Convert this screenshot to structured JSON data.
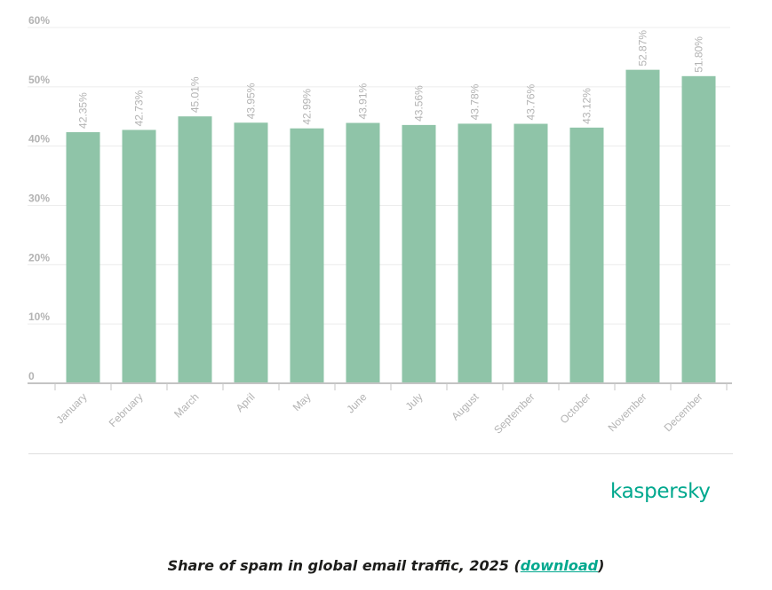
{
  "chart_data": {
    "type": "bar",
    "categories": [
      "January",
      "February",
      "March",
      "April",
      "May",
      "June",
      "July",
      "August",
      "September",
      "October",
      "November",
      "December"
    ],
    "values": [
      42.35,
      42.73,
      45.01,
      43.95,
      42.99,
      43.91,
      43.56,
      43.78,
      43.76,
      43.12,
      52.87,
      51.8
    ],
    "data_labels": [
      "42.35%",
      "42.73%",
      "45.01%",
      "43.95%",
      "42.99%",
      "43.91%",
      "43.56%",
      "43.78%",
      "43.76%",
      "43.12%",
      "52.87%",
      "51.80%"
    ],
    "y_ticks": [
      0,
      10,
      20,
      30,
      40,
      50,
      60
    ],
    "y_tick_labels": [
      "0",
      "10%",
      "20%",
      "30%",
      "40%",
      "50%",
      "60%"
    ],
    "ylim": [
      0,
      60
    ],
    "grid": true,
    "colors": {
      "bar": "#8fc4a8",
      "grid": "#ececec",
      "axis": "#c4c4c4",
      "label_text": "#b3b3b3"
    }
  },
  "brand": {
    "logo_text": "kaspersky",
    "color": "#00a88e"
  },
  "caption": {
    "prefix": "Share of spam in global email traffic, 2025 (",
    "link_text": "download",
    "suffix": ")"
  }
}
